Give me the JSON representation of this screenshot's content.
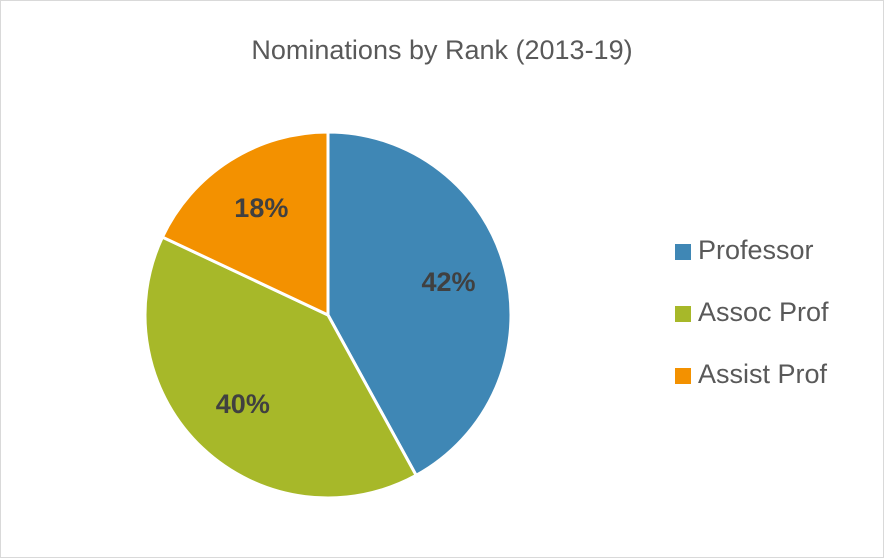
{
  "chart_data": {
    "type": "pie",
    "title": "Nominations by Rank (2013-19)",
    "categories": [
      "Professor",
      "Assoc Prof",
      "Assist Prof"
    ],
    "values": [
      42,
      40,
      18
    ],
    "value_labels": [
      "42%",
      "40%",
      "18%"
    ],
    "colors": [
      "#3f87b5",
      "#a7b829",
      "#f39100"
    ],
    "legend": "right"
  }
}
